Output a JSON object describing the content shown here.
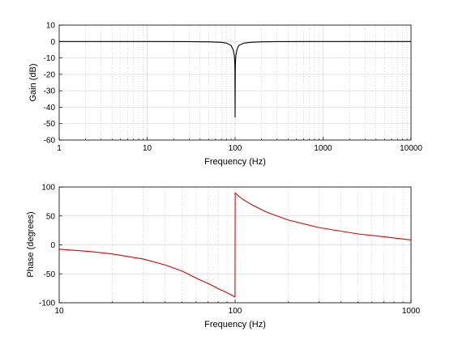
{
  "chart_data": [
    {
      "type": "line",
      "xscale": "log",
      "xlabel": "Frequency (Hz)",
      "ylabel": "Gain (dB)",
      "xlim": [
        1,
        10000
      ],
      "ylim": [
        -60,
        10
      ],
      "xticks": [
        "1",
        "10",
        "100",
        "1000",
        "10000"
      ],
      "yticks": [
        "10",
        "0",
        "-10",
        "-20",
        "-30",
        "-40",
        "-50",
        "-60"
      ],
      "grid": true,
      "color": "#000000",
      "series": [
        {
          "x": [
            1,
            10,
            30,
            50,
            70,
            80,
            90,
            95,
            98,
            99,
            99.5,
            100,
            100.5,
            101,
            102,
            105,
            110,
            125,
            150,
            200,
            300,
            1000,
            10000
          ],
          "y": [
            0,
            0,
            -0.05,
            -0.2,
            -0.5,
            -1.0,
            -2.4,
            -4.9,
            -8.5,
            -12.4,
            -17,
            -46,
            -17,
            -12.4,
            -8.5,
            -4.9,
            -2.4,
            -1.0,
            -0.5,
            -0.2,
            -0.05,
            0,
            0
          ]
        }
      ]
    },
    {
      "type": "line",
      "xscale": "log",
      "xlabel": "Frequency (Hz)",
      "ylabel": "Phase (degrees)",
      "xlim": [
        10,
        1000
      ],
      "ylim": [
        -100,
        100
      ],
      "xticks": [
        "10",
        "100",
        "1000"
      ],
      "yticks": [
        "100",
        "50",
        "0",
        "-50",
        "-100"
      ],
      "grid": true,
      "color": "#e00000",
      "series": [
        {
          "x": [
            10,
            15,
            20,
            30,
            40,
            50,
            60,
            70,
            80,
            90,
            95,
            99.9,
            100.1,
            105,
            110,
            125,
            150,
            200,
            300,
            500,
            700,
            1000
          ],
          "y": [
            -7.5,
            -11.5,
            -15.7,
            -24.4,
            -34.6,
            -45.3,
            -57.3,
            -66.5,
            -75.5,
            -82.6,
            -86.4,
            -89.9,
            89.9,
            84.1,
            79.2,
            69.0,
            57.0,
            43.0,
            29.9,
            18.9,
            14.1,
            8.5
          ]
        }
      ]
    }
  ]
}
